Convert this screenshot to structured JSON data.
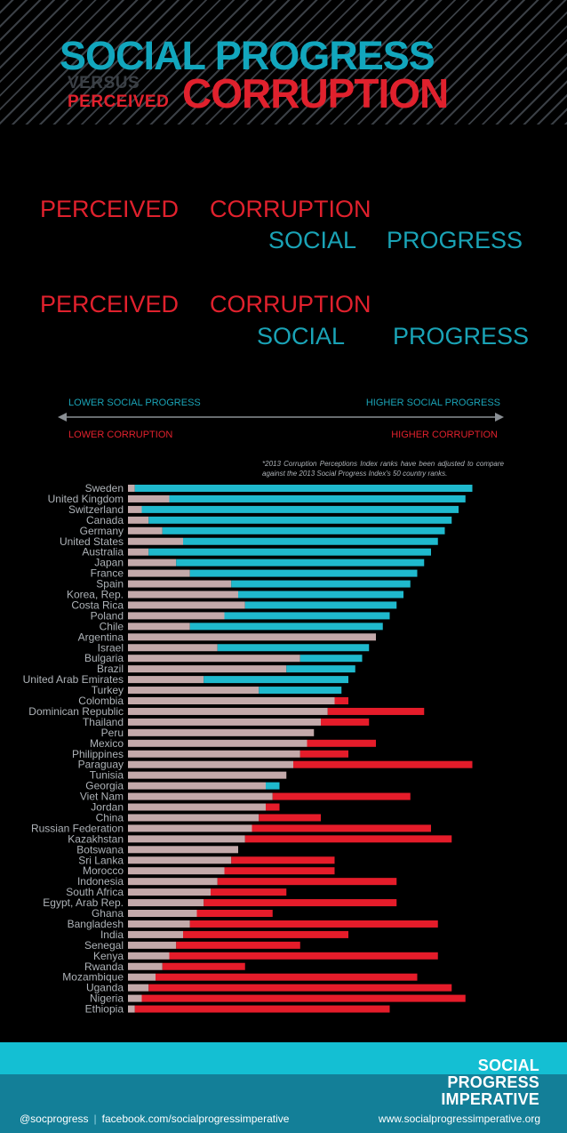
{
  "header": {
    "line1": "SOCIAL PROGRESS",
    "versus": "VERSUS",
    "perceived": "PERCEIVED",
    "corruption": "CORRUPTION"
  },
  "rows": [
    {
      "a": "PERCEIVED",
      "b": "CORRUPTION"
    },
    {
      "a": "SOCIAL",
      "b": "PROGRESS"
    },
    {
      "a": "PERCEIVED",
      "b": "CORRUPTION"
    },
    {
      "a": "SOCIAL",
      "b": "PROGRESS"
    }
  ],
  "legend": {
    "lower_social": "LOWER SOCIAL PROGRESS",
    "higher_social": "HIGHER SOCIAL PROGRESS",
    "lower_corruption": "LOWER CORRUPTION",
    "higher_corruption": "HIGHER CORRUPTION",
    "note": "*2013 Corruption Perceptions Index ranks have been adjusted to compare against the 2013 Social Progress Index's 50 country ranks."
  },
  "colors": {
    "social": "#1fb9cd",
    "corruption": "#e51c2a",
    "overlap": "#c3a9aa",
    "label": "#aeb3b8"
  },
  "chart_data": {
    "type": "bar",
    "categories": [
      "Sweden",
      "United Kingdom",
      "Switzerland",
      "Canada",
      "Germany",
      "United States",
      "Australia",
      "Japan",
      "France",
      "Spain",
      "Korea, Rep.",
      "Costa Rica",
      "Poland",
      "Chile",
      "Argentina",
      "Israel",
      "Bulgaria",
      "Brazil",
      "United Arab Emirates",
      "Turkey",
      "Colombia",
      "Dominican Republic",
      "Thailand",
      "Peru",
      "Mexico",
      "Philippines",
      "Paraguay",
      "Tunisia",
      "Georgia",
      "Viet Nam",
      "Jordan",
      "China",
      "Russian Federation",
      "Kazakhstan",
      "Botswana",
      "Sri Lanka",
      "Morocco",
      "Indonesia",
      "South Africa",
      "Egypt, Arab Rep.",
      "Ghana",
      "Bangladesh",
      "India",
      "Senegal",
      "Kenya",
      "Rwanda",
      "Mozambique",
      "Uganda",
      "Nigeria",
      "Ethiopia"
    ],
    "series": [
      {
        "values": [
          50,
          49,
          48,
          47,
          46,
          45,
          44,
          43,
          42,
          41,
          40,
          39,
          38,
          37,
          36,
          35,
          34,
          33,
          32,
          31,
          30,
          29,
          28,
          27,
          26,
          25,
          24,
          23,
          22,
          21,
          20,
          19,
          18,
          17,
          16,
          15,
          14,
          13,
          12,
          11,
          10,
          9,
          8,
          7,
          6,
          5,
          4,
          3,
          2,
          1
        ]
      },
      {
        "values": [
          1,
          6,
          2,
          3,
          5,
          8,
          3,
          7,
          9,
          15,
          16,
          17,
          14,
          9,
          36,
          13,
          25,
          23,
          11,
          19,
          32,
          43,
          35,
          27,
          36,
          32,
          50,
          23,
          20,
          41,
          22,
          28,
          44,
          47,
          16,
          30,
          30,
          39,
          23,
          39,
          21,
          45,
          32,
          25,
          45,
          17,
          42,
          47,
          49,
          38
        ]
      }
    ],
    "xlim": [
      0,
      50
    ]
  }
}
